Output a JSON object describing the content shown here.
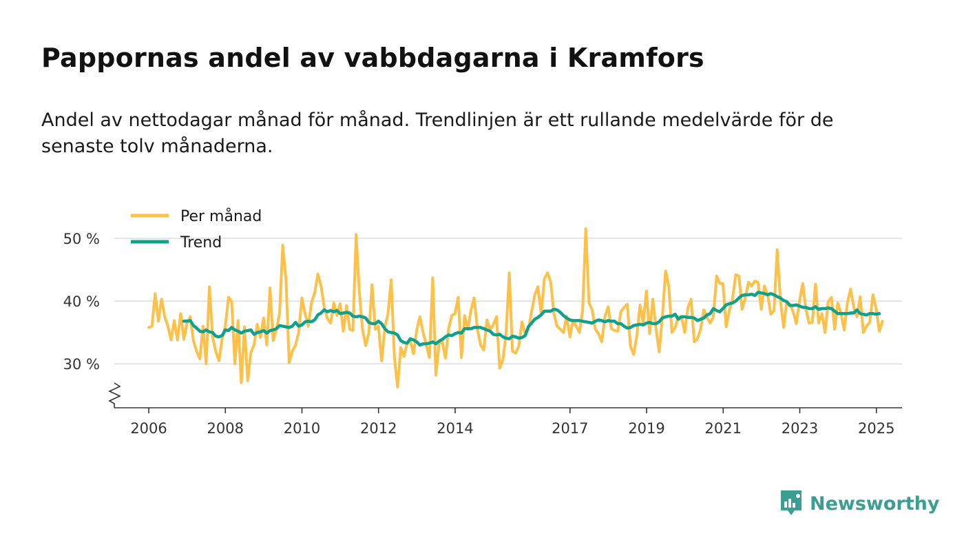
{
  "title": "Pappornas andel av vabbdagarna i Kramfors",
  "subtitle": "Andel av nettodagar månad för månad. Trendlinjen är ett rullande medelvärde för de senaste tolv månaderna.",
  "brand": {
    "name": "Newsworthy",
    "color": "#3c9e93"
  },
  "colors": {
    "per_month": "#fdc14a",
    "trend": "#12a08e",
    "grid": "#dddddd",
    "axis": "#333333"
  },
  "chart_data": {
    "type": "line",
    "title": "Pappornas andel av vabbdagarna i Kramfors",
    "xlabel": "",
    "ylabel": "",
    "ylim": [
      23,
      50
    ],
    "y_ticks": [
      {
        "value": 30,
        "label": "30 %"
      },
      {
        "value": 40,
        "label": "40 %"
      },
      {
        "value": 50,
        "label": "50 %"
      }
    ],
    "x_start": 2006.0,
    "x_step": 0.0833,
    "xlim": [
      2005.1,
      2025.67
    ],
    "x_ticks": [
      {
        "value": 2006,
        "label": "2006"
      },
      {
        "value": 2008,
        "label": "2008"
      },
      {
        "value": 2010,
        "label": "2010"
      },
      {
        "value": 2012,
        "label": "2012"
      },
      {
        "value": 2014,
        "label": "2014"
      },
      {
        "value": 2017,
        "label": "2017"
      },
      {
        "value": 2019,
        "label": "2019"
      },
      {
        "value": 2021,
        "label": "2021"
      },
      {
        "value": 2023,
        "label": "2023"
      },
      {
        "value": 2025,
        "label": "2025"
      }
    ],
    "legend": [
      {
        "name": "Per månad",
        "key": "per_month"
      },
      {
        "name": "Trend",
        "key": "trend"
      }
    ],
    "legend_position": "top-left",
    "series": [
      {
        "name": "Per månad",
        "key": "per_month",
        "start_index": 0,
        "values": [
          35.8,
          36.0,
          41.2,
          36.8,
          40.3,
          37.5,
          36.0,
          33.8,
          36.9,
          33.8,
          38.0,
          33.9,
          36.5,
          37.5,
          33.7,
          32.0,
          30.8,
          36.0,
          30.0,
          42.3,
          34.3,
          32.0,
          30.5,
          34.0,
          36.0,
          40.6,
          39.9,
          30.0,
          36.9,
          27.0,
          35.9,
          27.3,
          31.8,
          33.0,
          36.3,
          34.2,
          37.3,
          33.0,
          42.1,
          33.7,
          35.5,
          38.0,
          48.9,
          43.5,
          30.2,
          32.0,
          33.0,
          35.0,
          40.5,
          38.0,
          36.0,
          39.7,
          41.3,
          44.3,
          42.4,
          39.0,
          37.2,
          36.5,
          39.7,
          37.7,
          39.6,
          35.2,
          39.3,
          35.5,
          35.3,
          50.6,
          41.5,
          35.5,
          32.9,
          35.0,
          42.6,
          35.5,
          36.0,
          30.5,
          35.8,
          38.0,
          43.4,
          31.0,
          26.3,
          32.6,
          31.2,
          33.3,
          33.6,
          31.6,
          35.4,
          37.5,
          35.0,
          33.0,
          31.0,
          43.7,
          28.2,
          33.2,
          33.5,
          30.9,
          35.6,
          37.7,
          38.0,
          40.6,
          31.0,
          37.7,
          35.5,
          38.6,
          40.5,
          35.6,
          33.0,
          32.2,
          37.0,
          35.4,
          36.2,
          37.5,
          29.3,
          30.6,
          34.8,
          44.5,
          32.0,
          31.7,
          32.8,
          36.7,
          34.8,
          35.5,
          38.3,
          41.0,
          42.3,
          37.9,
          43.5,
          44.5,
          43.0,
          38.0,
          36.0,
          35.5,
          35.0,
          37.6,
          34.3,
          36.9,
          36.0,
          35.0,
          38.5,
          51.5,
          39.7,
          38.6,
          35.5,
          34.8,
          33.5,
          37.5,
          39.1,
          35.6,
          35.3,
          35.2,
          38.3,
          39.0,
          39.5,
          32.8,
          31.5,
          34.5,
          39.4,
          36.5,
          41.6,
          34.8,
          40.3,
          35.6,
          31.9,
          37.5,
          44.8,
          42.4,
          35.0,
          35.8,
          37.5,
          37.5,
          35.0,
          38.9,
          40.3,
          33.5,
          34.0,
          35.6,
          38.6,
          37.4,
          36.5,
          37.5,
          44.0,
          42.8,
          42.8,
          35.9,
          38.5,
          40.3,
          44.2,
          44.0,
          38.7,
          40.5,
          43.0,
          42.4,
          43.2,
          43.0,
          38.7,
          42.4,
          41.0,
          37.9,
          38.5,
          48.2,
          40.3,
          35.8,
          39.9,
          39.5,
          38.3,
          36.4,
          40.0,
          42.8,
          38.7,
          36.5,
          36.6,
          42.7,
          36.5,
          38.0,
          35.0,
          39.9,
          40.6,
          35.5,
          39.7,
          38.0,
          35.4,
          39.7,
          41.9,
          39.0,
          37.5,
          40.7,
          35.0,
          36.0,
          36.6,
          41.0,
          38.9,
          35.2,
          36.8
        ]
      },
      {
        "name": "Trend",
        "key": "trend",
        "start_index": 11,
        "values": [
          36.8,
          36.8,
          36.9,
          36.1,
          35.7,
          35.2,
          35.1,
          35.4,
          35.1,
          35.0,
          34.4,
          34.3,
          34.5,
          35.4,
          35.3,
          35.8,
          35.4,
          35.2,
          34.9,
          35.2,
          35.3,
          35.4,
          34.7,
          35.0,
          35.1,
          35.3,
          34.9,
          35.3,
          35.4,
          35.6,
          36.1,
          36.0,
          35.9,
          35.8,
          36.0,
          36.6,
          36.0,
          36.2,
          36.7,
          36.8,
          36.7,
          37.0,
          37.8,
          38.1,
          38.6,
          38.3,
          38.5,
          38.3,
          38.5,
          38.0,
          38.1,
          38.2,
          38.1,
          37.6,
          37.5,
          37.6,
          37.5,
          37.3,
          36.6,
          36.4,
          36.4,
          36.8,
          36.4,
          35.6,
          35.1,
          35.0,
          34.9,
          34.6,
          33.7,
          33.4,
          33.3,
          34.0,
          33.8,
          33.5,
          33.0,
          33.2,
          33.2,
          33.3,
          33.5,
          33.2,
          33.6,
          33.9,
          34.3,
          34.6,
          34.5,
          34.8,
          35.0,
          34.9,
          35.6,
          35.6,
          35.6,
          35.8,
          35.8,
          35.8,
          35.6,
          35.4,
          35.2,
          34.7,
          34.6,
          34.7,
          34.3,
          34.1,
          34.0,
          34.4,
          34.3,
          34.1,
          34.2,
          34.5,
          35.9,
          36.5,
          37.1,
          37.4,
          37.8,
          38.4,
          38.4,
          38.4,
          38.7,
          38.6,
          38.2,
          37.7,
          37.3,
          37.0,
          36.9,
          36.9,
          36.9,
          36.8,
          36.7,
          36.6,
          36.5,
          36.8,
          37.0,
          36.9,
          36.7,
          36.9,
          36.8,
          36.8,
          36.4,
          36.4,
          36.0,
          35.7,
          35.8,
          36.1,
          36.2,
          36.3,
          36.2,
          36.5,
          36.6,
          36.4,
          36.4,
          36.7,
          37.3,
          37.5,
          37.6,
          37.6,
          37.9,
          37.1,
          37.5,
          37.5,
          37.4,
          37.4,
          37.3,
          36.9,
          37.1,
          37.3,
          37.8,
          38.0,
          38.8,
          38.5,
          38.3,
          38.8,
          39.4,
          39.6,
          39.7,
          40.0,
          40.5,
          40.9,
          41.0,
          41.0,
          41.1,
          40.9,
          41.4,
          41.3,
          41.2,
          41.0,
          41.2,
          41.0,
          40.7,
          40.5,
          40.1,
          39.9,
          39.3,
          39.3,
          39.4,
          39.2,
          39.0,
          39.0,
          38.8,
          38.8,
          39.1,
          38.7,
          38.8,
          38.8,
          38.9,
          38.8,
          38.4,
          38.0,
          38.0,
          38.0,
          38.0,
          38.1,
          38.1,
          38.6,
          38.0,
          37.9,
          37.8,
          38.0,
          38.0,
          37.9,
          38.0
        ]
      }
    ]
  }
}
